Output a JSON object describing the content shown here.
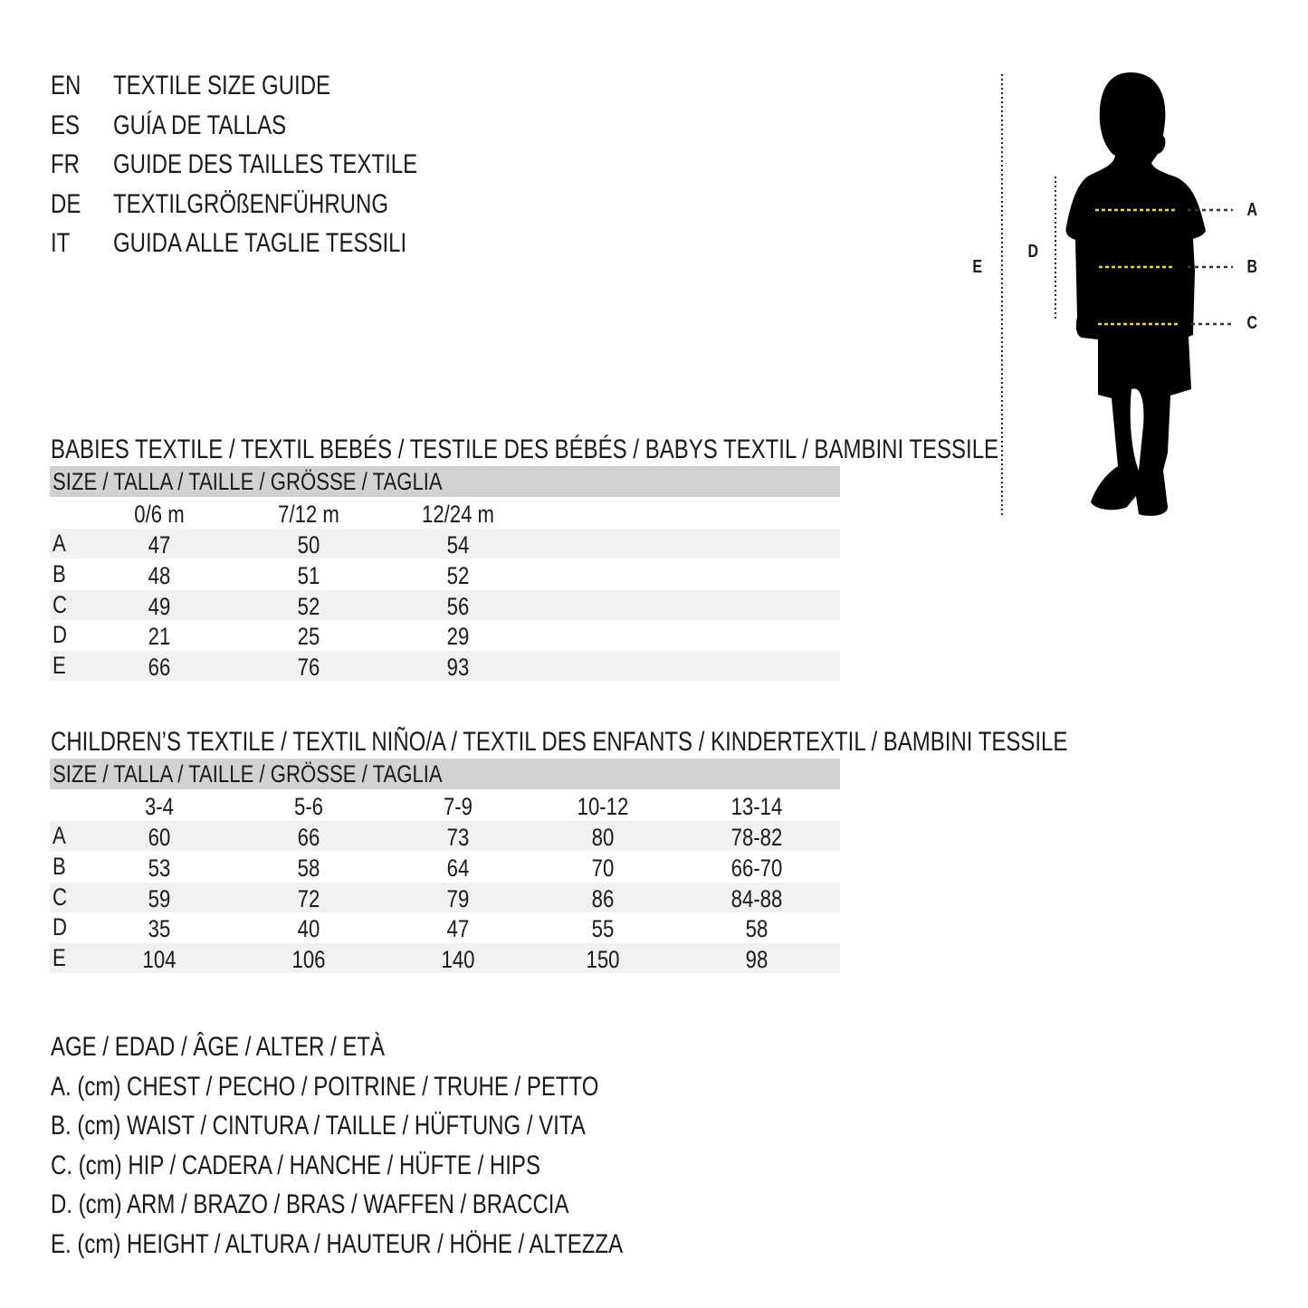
{
  "titles": [
    {
      "code": "EN",
      "text": "TEXTILE SIZE GUIDE"
    },
    {
      "code": "ES",
      "text": "GUÍA DE TALLAS"
    },
    {
      "code": "FR",
      "text": "GUIDE DES TAILLES TEXTILE"
    },
    {
      "code": "DE",
      "text": "TEXTILGRÖßENFÜHRUNG"
    },
    {
      "code": "IT",
      "text": "GUIDA ALLE TAGLIE TESSILI"
    }
  ],
  "figure": {
    "labels": {
      "a": "A",
      "b": "B",
      "c": "C",
      "d": "D",
      "e": "E"
    },
    "accent": "#f2e000"
  },
  "babies": {
    "heading": "BABIES TEXTILE / TEXTIL BEBÉS / TESTILE DES BÉBÉS / BABYS TEXTIL / BAMBINI TESSILE",
    "size_label": "SIZE / TALLA / TAILLE / GRÖSSE / TAGLIA",
    "columns": [
      "0/6 m",
      "7/12 m",
      "12/24 m"
    ],
    "rows": [
      {
        "label": "A",
        "values": [
          "47",
          "50",
          "54"
        ]
      },
      {
        "label": "B",
        "values": [
          "48",
          "51",
          "52"
        ]
      },
      {
        "label": "C",
        "values": [
          "49",
          "52",
          "56"
        ]
      },
      {
        "label": "D",
        "values": [
          "21",
          "25",
          "29"
        ]
      },
      {
        "label": "E",
        "values": [
          "66",
          "76",
          "93"
        ]
      }
    ]
  },
  "children": {
    "heading": "CHILDREN’S TEXTILE / TEXTIL NIÑO/A / TEXTIL DES ENFANTS / KINDERTEXTIL / BAMBINI TESSILE",
    "size_label": "SIZE / TALLA / TAILLE / GRÖSSE / TAGLIA",
    "columns": [
      "3-4",
      "5-6",
      "7-9",
      "10-12",
      "13-14"
    ],
    "rows": [
      {
        "label": "A",
        "values": [
          "60",
          "66",
          "73",
          "80",
          "78-82"
        ]
      },
      {
        "label": "B",
        "values": [
          "53",
          "58",
          "64",
          "70",
          "66-70"
        ]
      },
      {
        "label": "C",
        "values": [
          "59",
          "72",
          "79",
          "86",
          "84-88"
        ]
      },
      {
        "label": "D",
        "values": [
          "35",
          "40",
          "47",
          "55",
          "58"
        ]
      },
      {
        "label": "E",
        "values": [
          "104",
          "106",
          "140",
          "150",
          "98"
        ]
      }
    ]
  },
  "legend": [
    "AGE / EDAD / ÂGE / ALTER / ETÀ",
    "A. (cm) CHEST / PECHO / POITRINE / TRUHE / PETTO",
    "B. (cm) WAIST / CINTURA / TAILLE / HÜFTUNG / VITA",
    "C. (cm) HIP / CADERA / HANCHE / HÜFTE / HIPS",
    "D. (cm) ARM / BRAZO / BRAS / WAFFEN / BRACCIA",
    "E. (cm) HEIGHT / ALTURA / HAUTEUR / HÖHE / ALTEZZA"
  ]
}
